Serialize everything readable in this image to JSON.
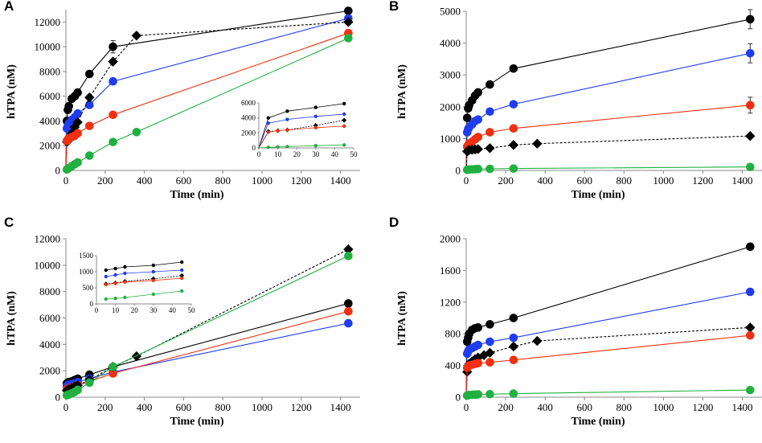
{
  "chart_data": [
    {
      "panel": "A",
      "type": "line",
      "xlabel": "Time (min)",
      "ylabel": "hTPA (nM)",
      "xlim": [
        0,
        1500
      ],
      "ylim": [
        0,
        13000
      ],
      "xticks": [
        0,
        200,
        400,
        600,
        800,
        1000,
        1200,
        1400
      ],
      "yticks": [
        0,
        2000,
        4000,
        6000,
        8000,
        10000,
        12000
      ],
      "series": [
        {
          "name": "black",
          "color": "#000000",
          "marker": "circle",
          "dashed": false,
          "x": [
            0,
            5,
            10,
            15,
            30,
            45,
            60,
            120,
            240,
            1440
          ],
          "y": [
            0,
            4000,
            4900,
            5200,
            5800,
            6000,
            6300,
            7800,
            10000,
            12900
          ]
        },
        {
          "name": "blue",
          "color": "#1f3cf0",
          "marker": "circle",
          "dashed": false,
          "x": [
            0,
            5,
            10,
            15,
            30,
            45,
            60,
            120,
            240,
            1440
          ],
          "y": [
            0,
            3400,
            3600,
            3800,
            4100,
            4300,
            4600,
            5300,
            7200,
            12300
          ]
        },
        {
          "name": "diamond",
          "color": "#000000",
          "marker": "diamond",
          "dashed": true,
          "x": [
            0,
            5,
            10,
            15,
            30,
            45,
            60,
            120,
            240,
            360,
            1440
          ],
          "y": [
            0,
            2300,
            2400,
            2500,
            3000,
            3500,
            3900,
            5900,
            8800,
            10900,
            12000
          ]
        },
        {
          "name": "red",
          "color": "#f03010",
          "marker": "circle",
          "dashed": false,
          "x": [
            0,
            5,
            10,
            15,
            30,
            45,
            60,
            120,
            240,
            1440
          ],
          "y": [
            0,
            2400,
            2500,
            2600,
            2700,
            2800,
            3000,
            3600,
            4500,
            11100
          ]
        },
        {
          "name": "green",
          "color": "#20b040",
          "marker": "circle",
          "dashed": false,
          "x": [
            0,
            5,
            10,
            15,
            30,
            45,
            60,
            120,
            240,
            360,
            1440
          ],
          "y": [
            0,
            80,
            150,
            200,
            350,
            500,
            650,
            1200,
            2300,
            3100,
            10700
          ]
        }
      ],
      "error_bars": [
        {
          "series": "black",
          "x": 240,
          "y": 10000,
          "err": 500
        }
      ],
      "inset": {
        "xlim": [
          0,
          50
        ],
        "ylim": [
          0,
          6000
        ],
        "xticks": [
          0,
          10,
          20,
          30,
          40,
          50
        ],
        "yticks": [
          0,
          2000,
          4000,
          6000
        ],
        "series": [
          {
            "name": "black",
            "color": "#000000",
            "marker": "circle",
            "dashed": false,
            "x": [
              0,
              5,
              15,
              30,
              45
            ],
            "y": [
              0,
              4000,
              4900,
              5400,
              5900
            ]
          },
          {
            "name": "blue",
            "color": "#1f3cf0",
            "marker": "circle",
            "dashed": false,
            "x": [
              0,
              5,
              15,
              30,
              45
            ],
            "y": [
              0,
              3300,
              3800,
              4200,
              4500
            ]
          },
          {
            "name": "diamond",
            "color": "#000000",
            "marker": "diamond",
            "dashed": true,
            "x": [
              0,
              5,
              10,
              15,
              30,
              45
            ],
            "y": [
              0,
              2200,
              2300,
              2400,
              3000,
              3700
            ]
          },
          {
            "name": "red",
            "color": "#f03010",
            "marker": "circle",
            "dashed": false,
            "x": [
              0,
              5,
              10,
              15,
              30,
              45
            ],
            "y": [
              0,
              2100,
              2300,
              2400,
              2700,
              2900
            ]
          },
          {
            "name": "green",
            "color": "#20b040",
            "marker": "circle",
            "dashed": false,
            "x": [
              0,
              5,
              10,
              15,
              30,
              45
            ],
            "y": [
              0,
              80,
              130,
              180,
              300,
              400
            ]
          }
        ]
      }
    },
    {
      "panel": "B",
      "type": "line",
      "xlabel": "Time (min)",
      "ylabel": "hTPA (nM)",
      "xlim": [
        0,
        1500
      ],
      "ylim": [
        0,
        5000
      ],
      "xticks": [
        0,
        200,
        400,
        600,
        800,
        1000,
        1200,
        1400
      ],
      "yticks": [
        0,
        1000,
        2000,
        3000,
        4000,
        5000
      ],
      "series": [
        {
          "name": "black",
          "color": "#000000",
          "marker": "circle",
          "dashed": false,
          "x": [
            0,
            5,
            10,
            15,
            30,
            45,
            60,
            120,
            240,
            1440
          ],
          "y": [
            0,
            1650,
            1950,
            2050,
            2200,
            2350,
            2450,
            2700,
            3200,
            4750
          ]
        },
        {
          "name": "blue",
          "color": "#1f3cf0",
          "marker": "circle",
          "dashed": false,
          "x": [
            0,
            5,
            10,
            15,
            30,
            45,
            60,
            120,
            240,
            1440
          ],
          "y": [
            0,
            1200,
            1300,
            1350,
            1450,
            1550,
            1600,
            1850,
            2080,
            3680
          ]
        },
        {
          "name": "red",
          "color": "#f03010",
          "marker": "circle",
          "dashed": false,
          "x": [
            0,
            5,
            10,
            15,
            30,
            45,
            60,
            120,
            240,
            1440
          ],
          "y": [
            0,
            750,
            800,
            850,
            900,
            980,
            1050,
            1200,
            1320,
            2050
          ]
        },
        {
          "name": "diamond",
          "color": "#000000",
          "marker": "diamond",
          "dashed": true,
          "x": [
            0,
            5,
            10,
            15,
            30,
            45,
            60,
            120,
            240,
            360,
            1440
          ],
          "y": [
            0,
            600,
            620,
            640,
            650,
            660,
            670,
            700,
            800,
            840,
            1080
          ]
        },
        {
          "name": "green",
          "color": "#20b040",
          "marker": "circle",
          "dashed": false,
          "x": [
            0,
            5,
            10,
            15,
            30,
            45,
            60,
            120,
            240,
            1440
          ],
          "y": [
            0,
            20,
            25,
            30,
            35,
            40,
            45,
            50,
            60,
            110
          ]
        }
      ],
      "error_bars": [
        {
          "series": "black",
          "x": 1440,
          "y": 4750,
          "err": 300
        },
        {
          "series": "blue",
          "x": 1440,
          "y": 3680,
          "err": 300
        },
        {
          "series": "red",
          "x": 1440,
          "y": 2050,
          "err": 250
        }
      ]
    },
    {
      "panel": "C",
      "type": "line",
      "xlabel": "Time (min)",
      "ylabel": "hTPA (nM)",
      "xlim": [
        0,
        1500
      ],
      "ylim": [
        0,
        12000
      ],
      "xticks": [
        0,
        200,
        400,
        600,
        800,
        1000,
        1200,
        1400
      ],
      "yticks": [
        0,
        2000,
        4000,
        6000,
        8000,
        10000,
        12000
      ],
      "series": [
        {
          "name": "black",
          "color": "#000000",
          "marker": "circle",
          "dashed": false,
          "x": [
            0,
            5,
            10,
            15,
            30,
            45,
            60,
            120,
            240,
            1440
          ],
          "y": [
            0,
            1050,
            1100,
            1150,
            1200,
            1300,
            1400,
            1700,
            2300,
            7100
          ]
        },
        {
          "name": "blue",
          "color": "#1f3cf0",
          "marker": "circle",
          "dashed": false,
          "x": [
            0,
            5,
            10,
            15,
            30,
            45,
            60,
            120,
            240,
            1440
          ],
          "y": [
            0,
            850,
            900,
            950,
            1000,
            1050,
            1150,
            1400,
            1900,
            5600
          ]
        },
        {
          "name": "red",
          "color": "#f03010",
          "marker": "circle",
          "dashed": false,
          "x": [
            0,
            5,
            10,
            15,
            30,
            45,
            60,
            120,
            240,
            1440
          ],
          "y": [
            0,
            600,
            650,
            700,
            750,
            800,
            900,
            1200,
            1800,
            6500
          ]
        },
        {
          "name": "diamond",
          "color": "#000000",
          "marker": "diamond",
          "dashed": true,
          "x": [
            0,
            5,
            10,
            15,
            30,
            45,
            60,
            120,
            240,
            360,
            1440
          ],
          "y": [
            0,
            500,
            550,
            600,
            700,
            800,
            900,
            1300,
            2300,
            3100,
            11200
          ]
        },
        {
          "name": "green",
          "color": "#20b040",
          "marker": "circle",
          "dashed": false,
          "x": [
            0,
            5,
            10,
            15,
            30,
            45,
            60,
            120,
            240,
            1440
          ],
          "y": [
            0,
            150,
            170,
            200,
            300,
            400,
            550,
            1100,
            2300,
            10700
          ]
        }
      ],
      "inset": {
        "xlim": [
          0,
          50
        ],
        "ylim": [
          0,
          1500
        ],
        "xticks": [
          0,
          10,
          20,
          30,
          40,
          50
        ],
        "yticks": [
          0,
          500,
          1000,
          1500
        ],
        "series": [
          {
            "name": "black",
            "color": "#000000",
            "marker": "circle",
            "dashed": false,
            "x": [
              5,
              10,
              15,
              30,
              45
            ],
            "y": [
              1050,
              1100,
              1150,
              1200,
              1300
            ]
          },
          {
            "name": "blue",
            "color": "#1f3cf0",
            "marker": "circle",
            "dashed": false,
            "x": [
              5,
              10,
              15,
              30,
              45
            ],
            "y": [
              850,
              900,
              950,
              1000,
              1050
            ]
          },
          {
            "name": "diamond",
            "color": "#000000",
            "marker": "diamond",
            "dashed": true,
            "x": [
              5,
              10,
              15,
              30,
              45
            ],
            "y": [
              620,
              650,
              700,
              780,
              880
            ]
          },
          {
            "name": "red",
            "color": "#f03010",
            "marker": "circle",
            "dashed": false,
            "x": [
              5,
              10,
              15,
              30,
              45
            ],
            "y": [
              600,
              640,
              680,
              730,
              800
            ]
          },
          {
            "name": "green",
            "color": "#20b040",
            "marker": "circle",
            "dashed": false,
            "x": [
              5,
              10,
              15,
              30,
              45
            ],
            "y": [
              150,
              170,
              200,
              300,
              400
            ]
          }
        ]
      }
    },
    {
      "panel": "D",
      "type": "line",
      "xlabel": "Time (min)",
      "ylabel": "hTPA (nM)",
      "xlim": [
        0,
        1500
      ],
      "ylim": [
        0,
        2000
      ],
      "xticks": [
        0,
        200,
        400,
        600,
        800,
        1000,
        1200,
        1400
      ],
      "yticks": [
        0,
        400,
        800,
        1200,
        1600,
        2000
      ],
      "series": [
        {
          "name": "black",
          "color": "#000000",
          "marker": "circle",
          "dashed": false,
          "x": [
            0,
            5,
            10,
            15,
            30,
            45,
            60,
            120,
            240,
            1440
          ],
          "y": [
            0,
            700,
            750,
            800,
            850,
            870,
            880,
            920,
            1000,
            1900
          ]
        },
        {
          "name": "blue",
          "color": "#1f3cf0",
          "marker": "circle",
          "dashed": false,
          "x": [
            0,
            5,
            10,
            15,
            30,
            45,
            60,
            120,
            240,
            1440
          ],
          "y": [
            0,
            550,
            580,
            600,
            620,
            640,
            660,
            700,
            750,
            1330
          ]
        },
        {
          "name": "diamond",
          "color": "#000000",
          "marker": "diamond",
          "dashed": true,
          "x": [
            0,
            5,
            10,
            15,
            30,
            45,
            60,
            90,
            120,
            240,
            360,
            1440
          ],
          "y": [
            0,
            320,
            380,
            420,
            450,
            480,
            500,
            530,
            560,
            640,
            710,
            880
          ]
        },
        {
          "name": "red",
          "color": "#f03010",
          "marker": "circle",
          "dashed": false,
          "x": [
            0,
            5,
            10,
            15,
            30,
            45,
            60,
            120,
            240,
            1440
          ],
          "y": [
            0,
            370,
            390,
            400,
            410,
            420,
            430,
            440,
            470,
            780
          ]
        },
        {
          "name": "green",
          "color": "#20b040",
          "marker": "circle",
          "dashed": false,
          "x": [
            0,
            5,
            10,
            15,
            30,
            45,
            60,
            120,
            240,
            1440
          ],
          "y": [
            0,
            20,
            25,
            28,
            30,
            32,
            35,
            38,
            45,
            90
          ]
        }
      ]
    }
  ]
}
